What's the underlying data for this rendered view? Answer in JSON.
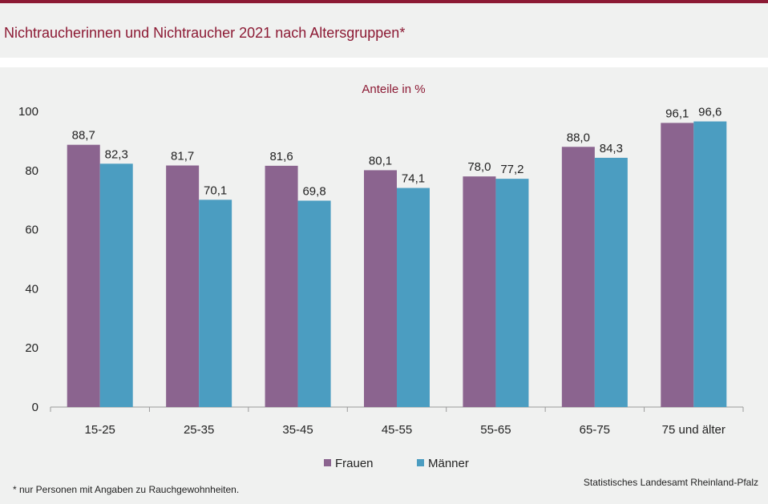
{
  "header": {
    "title": "Nichtraucherinnen und Nichtraucher 2021 nach Altersgruppen*"
  },
  "footer": {
    "note": "* nur Personen mit Angaben zu Rauchgewohnheiten.",
    "source": "Statistisches Landesamt Rheinland-Pfalz"
  },
  "colors": {
    "accent": "#8c1a34",
    "frauen": "#8b648f",
    "maenner": "#4b9dc1"
  },
  "chart_data": {
    "type": "bar",
    "title": "Anteile in %",
    "xlabel": "",
    "ylabel": "",
    "ylim": [
      0,
      100
    ],
    "yticks": [
      0,
      20,
      40,
      60,
      80,
      100
    ],
    "categories": [
      "15-25",
      "25-35",
      "35-45",
      "45-55",
      "55-65",
      "65-75",
      "75 und älter"
    ],
    "series": [
      {
        "name": "Frauen",
        "values": [
          88.7,
          81.7,
          81.6,
          80.1,
          78.0,
          88.0,
          96.1
        ],
        "labels": [
          "88,7",
          "81,7",
          "81,6",
          "80,1",
          "78,0",
          "88,0",
          "96,1"
        ]
      },
      {
        "name": "Männer",
        "values": [
          82.3,
          70.1,
          69.8,
          74.1,
          77.2,
          84.3,
          96.6
        ],
        "labels": [
          "82,3",
          "70,1",
          "69,8",
          "74,1",
          "77,2",
          "84,3",
          "96,6"
        ]
      }
    ],
    "legend": "bottom-center",
    "grid": false
  }
}
